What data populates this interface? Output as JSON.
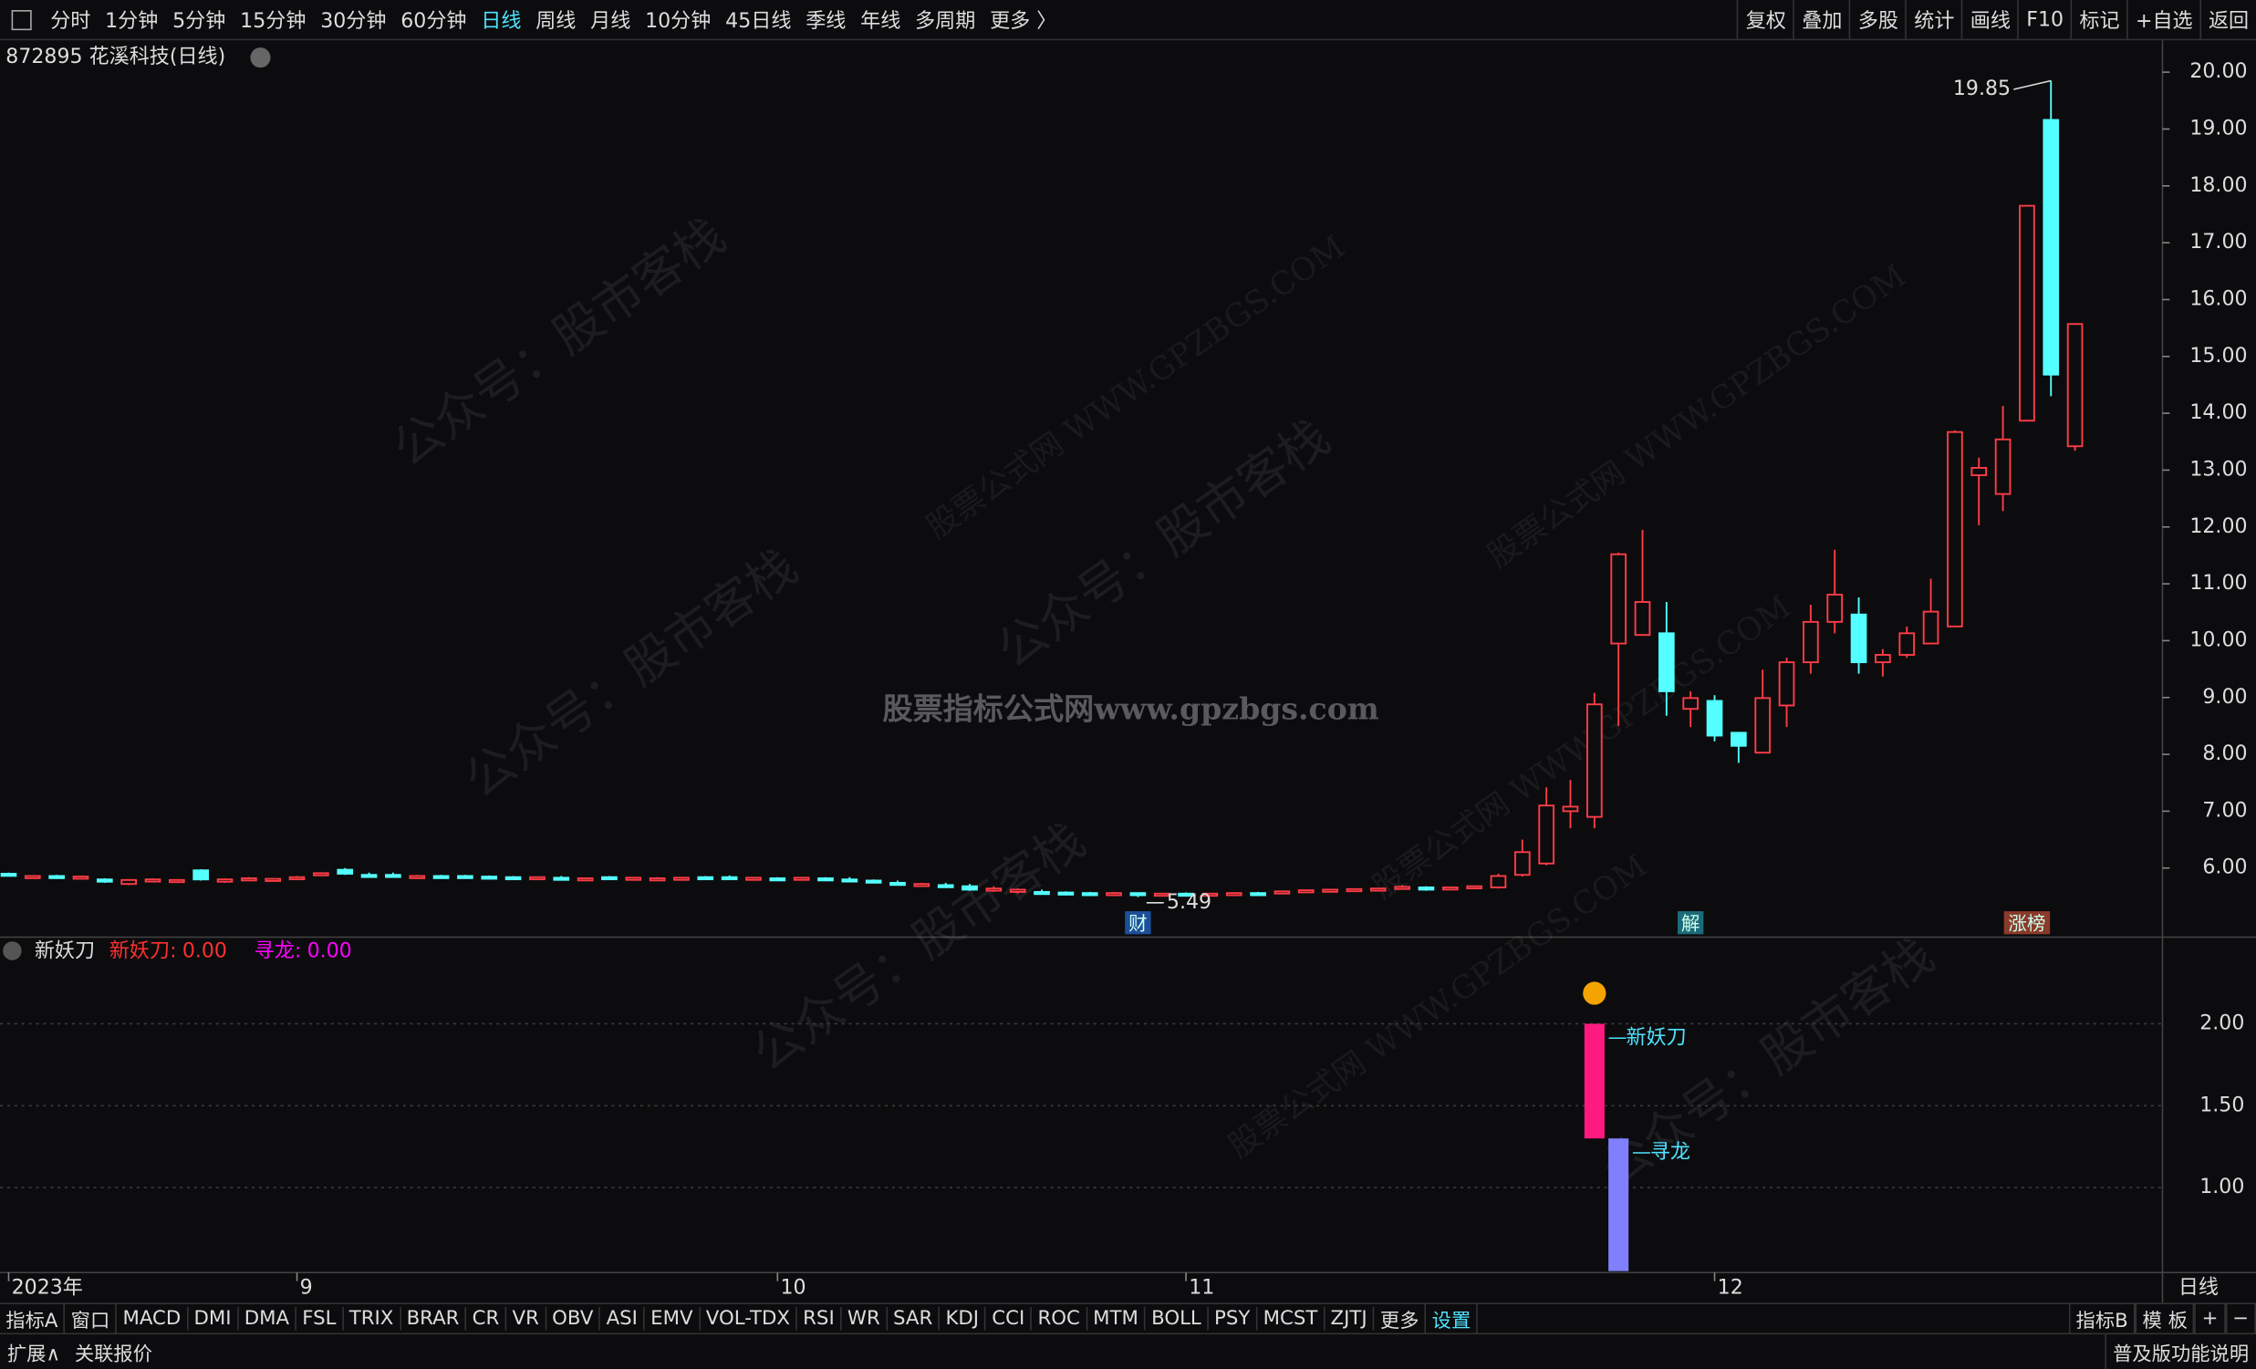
{
  "toolbar": {
    "left": [
      "分时",
      "1分钟",
      "5分钟",
      "15分钟",
      "30分钟",
      "60分钟",
      "日线",
      "周线",
      "月线",
      "10分钟",
      "45日线",
      "季线",
      "年线",
      "多周期",
      "更多 〉"
    ],
    "highlight": "日线",
    "right": [
      "复权",
      "叠加",
      "多股",
      "统计",
      "画线",
      "F10",
      "标记",
      "+自选",
      "返回"
    ]
  },
  "tabs": {
    "left": [
      "指标A",
      "窗口",
      "MACD",
      "DMI",
      "DMA",
      "FSL",
      "TRIX",
      "BRAR",
      "CR",
      "VR",
      "OBV",
      "ASI",
      "EMV",
      "VOL-TDX",
      "RSI",
      "WR",
      "SAR",
      "KDJ",
      "CCI",
      "ROC",
      "MTM",
      "BOLL",
      "PSY",
      "MCST",
      "ZJTJ",
      "更多",
      "设置"
    ],
    "highlight": "设置",
    "right": [
      "指标B",
      "模 板",
      "+",
      "−"
    ]
  },
  "status": {
    "left": [
      "扩展∧",
      "关联报价"
    ],
    "right": "普及版功能说明"
  },
  "period_label": "日线",
  "watermarks": {
    "center": "股票指标公式网www.gpzbgs.com",
    "account": "公众号：股市客栈",
    "site": "股票公式网 WWW.GPZBGS.COM"
  },
  "chart_data": [
    {
      "type": "candlestick",
      "title": "872895 花溪科技(日线)",
      "up_color": "#ff3c46",
      "down_color": "#54ffff",
      "categories": [
        "2023年",
        null,
        null,
        null,
        null,
        null,
        null,
        null,
        null,
        null,
        null,
        null,
        "9",
        null,
        null,
        null,
        null,
        null,
        null,
        null,
        null,
        null,
        null,
        null,
        null,
        null,
        null,
        null,
        null,
        null,
        null,
        null,
        "10",
        null,
        null,
        null,
        null,
        null,
        null,
        null,
        null,
        null,
        null,
        null,
        null,
        null,
        null,
        null,
        null,
        "11",
        null,
        null,
        null,
        null,
        null,
        null,
        null,
        null,
        null,
        null,
        null,
        null,
        null,
        null,
        null,
        null,
        null,
        null,
        null,
        null,
        null,
        "12",
        null,
        null,
        null,
        null,
        null,
        null,
        null,
        null,
        null,
        null,
        null,
        null,
        null,
        null,
        null
      ],
      "open": [
        5.9,
        5.84,
        5.86,
        5.84,
        5.8,
        5.72,
        5.78,
        5.76,
        5.96,
        5.76,
        5.8,
        5.78,
        5.82,
        5.88,
        5.97,
        5.88,
        5.88,
        5.85,
        5.86,
        5.86,
        5.85,
        5.84,
        5.82,
        5.83,
        5.8,
        5.84,
        5.8,
        5.8,
        5.8,
        5.84,
        5.84,
        5.8,
        5.82,
        5.82,
        5.82,
        5.8,
        5.78,
        5.74,
        5.7,
        5.7,
        5.68,
        5.62,
        5.58,
        5.58,
        5.57,
        5.56,
        5.55,
        5.56,
        5.54,
        5.55,
        5.53,
        5.54,
        5.56,
        5.56,
        5.58,
        5.6,
        5.61,
        5.62,
        5.64,
        5.66,
        5.64,
        5.66,
        5.66,
        5.88,
        6.08,
        7.0,
        6.9,
        9.95,
        10.1,
        10.13,
        8.8,
        8.94,
        8.38,
        8.03,
        8.86,
        9.62,
        10.33,
        10.46,
        9.62,
        9.75,
        9.95,
        10.25,
        12.91,
        12.58,
        13.87,
        19.16,
        13.42
      ],
      "high": [
        5.92,
        5.87,
        5.88,
        5.86,
        5.82,
        5.8,
        5.82,
        5.8,
        5.98,
        5.82,
        5.84,
        5.82,
        5.86,
        5.92,
        6.0,
        5.92,
        5.92,
        5.88,
        5.88,
        5.88,
        5.87,
        5.86,
        5.85,
        5.86,
        5.83,
        5.86,
        5.84,
        5.84,
        5.84,
        5.86,
        5.87,
        5.84,
        5.84,
        5.84,
        5.84,
        5.84,
        5.8,
        5.78,
        5.74,
        5.74,
        5.72,
        5.68,
        5.64,
        5.62,
        5.59,
        5.58,
        5.58,
        5.57,
        5.56,
        5.57,
        5.56,
        5.57,
        5.58,
        5.6,
        5.62,
        5.63,
        5.64,
        5.65,
        5.7,
        5.68,
        5.67,
        5.69,
        5.9,
        6.5,
        7.42,
        7.55,
        9.08,
        11.55,
        11.95,
        10.68,
        9.11,
        9.04,
        8.38,
        9.49,
        9.7,
        10.63,
        11.6,
        10.76,
        9.85,
        10.25,
        11.09,
        13.7,
        13.22,
        14.13,
        17.65,
        19.85,
        15.57
      ],
      "low": [
        5.86,
        5.83,
        5.84,
        5.83,
        5.74,
        5.7,
        5.76,
        5.74,
        5.78,
        5.74,
        5.78,
        5.77,
        5.8,
        5.86,
        5.88,
        5.85,
        5.84,
        5.84,
        5.84,
        5.84,
        5.83,
        5.82,
        5.8,
        5.81,
        5.79,
        5.8,
        5.78,
        5.78,
        5.78,
        5.82,
        5.82,
        5.79,
        5.8,
        5.8,
        5.8,
        5.78,
        5.76,
        5.72,
        5.68,
        5.68,
        5.6,
        5.58,
        5.55,
        5.56,
        5.55,
        5.54,
        5.53,
        5.49,
        5.52,
        5.53,
        5.52,
        5.53,
        5.54,
        5.54,
        5.57,
        5.59,
        5.6,
        5.61,
        5.62,
        5.6,
        5.62,
        5.64,
        5.64,
        5.85,
        6.05,
        6.7,
        6.7,
        8.5,
        10.1,
        8.68,
        8.48,
        8.23,
        7.85,
        8.03,
        8.48,
        9.42,
        10.13,
        9.42,
        9.37,
        9.7,
        9.95,
        10.25,
        12.03,
        12.28,
        13.87,
        14.3,
        13.34
      ],
      "close": [
        5.87,
        5.86,
        5.85,
        5.85,
        5.76,
        5.79,
        5.8,
        5.79,
        5.8,
        5.8,
        5.82,
        5.81,
        5.84,
        5.91,
        5.9,
        5.87,
        5.86,
        5.86,
        5.85,
        5.85,
        5.84,
        5.83,
        5.84,
        5.82,
        5.82,
        5.81,
        5.83,
        5.82,
        5.83,
        5.83,
        5.83,
        5.83,
        5.81,
        5.83,
        5.81,
        5.79,
        5.77,
        5.73,
        5.72,
        5.69,
        5.62,
        5.64,
        5.62,
        5.57,
        5.56,
        5.55,
        5.56,
        5.54,
        5.55,
        5.54,
        5.55,
        5.56,
        5.55,
        5.59,
        5.61,
        5.62,
        5.63,
        5.64,
        5.67,
        5.62,
        5.66,
        5.68,
        5.86,
        6.28,
        7.1,
        7.08,
        8.88,
        11.52,
        10.68,
        9.11,
        8.99,
        8.33,
        8.15,
        8.99,
        9.62,
        10.33,
        10.81,
        9.62,
        9.75,
        10.13,
        10.51,
        13.67,
        13.04,
        13.54,
        17.65,
        14.68,
        15.57
      ],
      "ylim": [
        4.81,
        20.51
      ],
      "yticks": [
        {
          "value": 6,
          "label": "6.00"
        },
        {
          "value": 7,
          "label": "7.00"
        },
        {
          "value": 8,
          "label": "8.00"
        },
        {
          "value": 9,
          "label": "9.00"
        },
        {
          "value": 10,
          "label": "10.00"
        },
        {
          "value": 11,
          "label": "11.00"
        },
        {
          "value": 12,
          "label": "12.00"
        },
        {
          "value": 13,
          "label": "13.00"
        },
        {
          "value": 14,
          "label": "14.00"
        },
        {
          "value": 15,
          "label": "15.00"
        },
        {
          "value": 16,
          "label": "16.00"
        },
        {
          "value": 17,
          "label": "17.00"
        },
        {
          "value": 18,
          "label": "18.00"
        },
        {
          "value": 19,
          "label": "19.00"
        },
        {
          "value": 20,
          "label": "20.00"
        }
      ],
      "extremes": [
        {
          "index": 85,
          "value": 19.85
        },
        {
          "index": 47,
          "value": 5.49
        }
      ],
      "events": [
        {
          "index": 47,
          "label": "财",
          "color": "#1d4f9a"
        },
        {
          "index": 70,
          "label": "解",
          "color": "#1d6b7a"
        },
        {
          "index": 84,
          "label": "涨榜",
          "color": "#8a3a2a"
        }
      ]
    },
    {
      "type": "floating-bar",
      "title": "新妖刀",
      "ylim": [
        0.49,
        2.52
      ],
      "yticks": [
        {
          "value": 1,
          "label": "1.00"
        },
        {
          "value": 1.5,
          "label": "1.50"
        },
        {
          "value": 2,
          "label": "2.00"
        }
      ],
      "grid": true,
      "series": [
        {
          "name": "新妖刀",
          "color": "#ff1a7f",
          "legend_color": "#ff3030",
          "index": 66,
          "values": [
            1.3,
            2.0
          ],
          "last": {
            "value": 0,
            "label": "0.00"
          }
        },
        {
          "name": "寻龙",
          "color": "#8080ff",
          "legend_color": "#ff00ff",
          "index": 67,
          "values": [
            0.49,
            1.3
          ],
          "last": {
            "value": 0,
            "label": "0.00"
          }
        }
      ]
    }
  ]
}
